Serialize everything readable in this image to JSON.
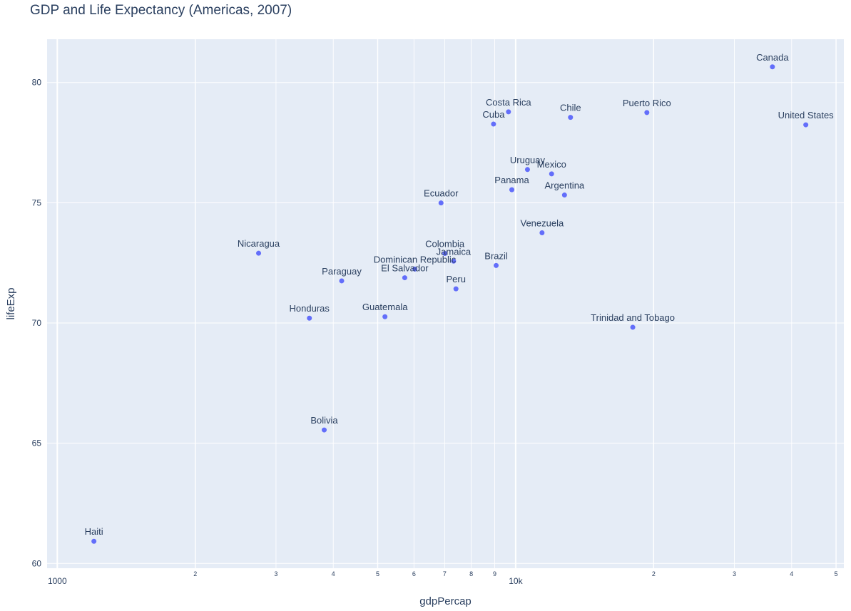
{
  "chart_data": {
    "type": "scatter",
    "title": "GDP and Life Expectancy (Americas, 2007)",
    "xlabel": "gdpPercap",
    "ylabel": "lifeExp",
    "x_scale": "log",
    "xlim": [
      950,
      52000
    ],
    "ylim": [
      59.8,
      81.8
    ],
    "grid": true,
    "marker_color": "#636efa",
    "plot_bg": "#e5ecf6",
    "x_ticks_major": [
      {
        "value": 1000,
        "label": "1000"
      },
      {
        "value": 10000,
        "label": "10k"
      }
    ],
    "x_ticks_minor": [
      {
        "value": 2000,
        "label": "2"
      },
      {
        "value": 3000,
        "label": "3"
      },
      {
        "value": 4000,
        "label": "4"
      },
      {
        "value": 5000,
        "label": "5"
      },
      {
        "value": 6000,
        "label": "6"
      },
      {
        "value": 7000,
        "label": "7"
      },
      {
        "value": 8000,
        "label": "8"
      },
      {
        "value": 9000,
        "label": "9"
      },
      {
        "value": 20000,
        "label": "2"
      },
      {
        "value": 30000,
        "label": "3"
      },
      {
        "value": 40000,
        "label": "4"
      },
      {
        "value": 50000,
        "label": "5"
      }
    ],
    "y_ticks": [
      {
        "value": 60,
        "label": "60"
      },
      {
        "value": 65,
        "label": "65"
      },
      {
        "value": 70,
        "label": "70"
      },
      {
        "value": 75,
        "label": "75"
      },
      {
        "value": 80,
        "label": "80"
      }
    ],
    "points": [
      {
        "label": "Canada",
        "x": 36319,
        "y": 80.65
      },
      {
        "label": "Costa Rica",
        "x": 9645,
        "y": 78.78
      },
      {
        "label": "Chile",
        "x": 13172,
        "y": 78.55
      },
      {
        "label": "Puerto Rico",
        "x": 19329,
        "y": 78.75
      },
      {
        "label": "Cuba",
        "x": 8948,
        "y": 78.27
      },
      {
        "label": "United States",
        "x": 42952,
        "y": 78.24
      },
      {
        "label": "Uruguay",
        "x": 10611,
        "y": 76.38
      },
      {
        "label": "Mexico",
        "x": 11978,
        "y": 76.2
      },
      {
        "label": "Panama",
        "x": 9809,
        "y": 75.54
      },
      {
        "label": "Argentina",
        "x": 12779,
        "y": 75.32
      },
      {
        "label": "Ecuador",
        "x": 6873,
        "y": 74.99
      },
      {
        "label": "Venezuela",
        "x": 11416,
        "y": 73.75
      },
      {
        "label": "Nicaragua",
        "x": 2749,
        "y": 72.9
      },
      {
        "label": "Colombia",
        "x": 7007,
        "y": 72.89
      },
      {
        "label": "Jamaica",
        "x": 7321,
        "y": 72.57
      },
      {
        "label": "Brazil",
        "x": 9066,
        "y": 72.39
      },
      {
        "label": "Dominican Republic",
        "x": 6025,
        "y": 72.24
      },
      {
        "label": "El Salvador",
        "x": 5728,
        "y": 71.88
      },
      {
        "label": "Paraguay",
        "x": 4173,
        "y": 71.75
      },
      {
        "label": "Peru",
        "x": 7409,
        "y": 71.42
      },
      {
        "label": "Honduras",
        "x": 3548,
        "y": 70.2
      },
      {
        "label": "Guatemala",
        "x": 5186,
        "y": 70.26
      },
      {
        "label": "Trinidad and Tobago",
        "x": 18009,
        "y": 69.82
      },
      {
        "label": "Bolivia",
        "x": 3822,
        "y": 65.55
      },
      {
        "label": "Haiti",
        "x": 1202,
        "y": 60.92
      }
    ]
  }
}
